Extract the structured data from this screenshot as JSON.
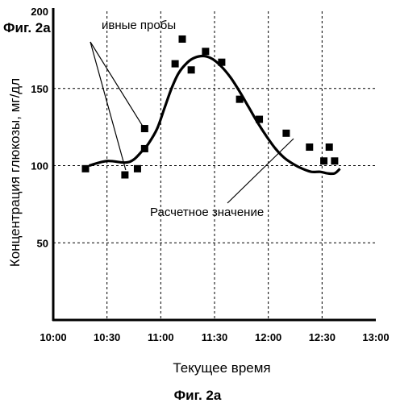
{
  "chart_data": {
    "type": "scatter",
    "xlabel": "Текущее время",
    "ylabel": "Концентрация глюкозы, мг/дл",
    "x_ticks": [
      "10:00",
      "10:30",
      "11:00",
      "11:30",
      "12:00",
      "12:30",
      "13:00"
    ],
    "y_ticks": [
      "50",
      "100",
      "150"
    ],
    "y_top_tick_partial": "200",
    "xlim": [
      "10:00",
      "13:00"
    ],
    "ylim": [
      0,
      200
    ],
    "grid": true,
    "series": [
      {
        "name": "ивные пробы",
        "kind": "points",
        "marker": "square",
        "x": [
          "10:18",
          "10:40",
          "10:47",
          "10:51",
          "10:51",
          "11:08",
          "11:12",
          "11:17",
          "11:25",
          "11:34",
          "11:44",
          "11:55",
          "12:10",
          "12:23",
          "12:31",
          "12:34",
          "12:37"
        ],
        "y": [
          98,
          94,
          98,
          111,
          124,
          166,
          182,
          162,
          174,
          167,
          143,
          130,
          121,
          112,
          103,
          112,
          103
        ]
      },
      {
        "name": "Расчетное значение",
        "kind": "line",
        "x": [
          "10:20",
          "10:30",
          "10:40",
          "10:45",
          "10:50",
          "10:53",
          "10:58",
          "11:02",
          "11:06",
          "11:10",
          "11:15",
          "11:19",
          "11:24",
          "11:29",
          "11:34",
          "11:39",
          "11:44",
          "11:49",
          "11:54",
          "11:59",
          "12:04",
          "12:09",
          "12:14",
          "12:19",
          "12:24",
          "12:29",
          "12:33",
          "12:37",
          "12:40"
        ],
        "y": [
          100,
          103,
          102,
          104,
          110,
          114,
          124,
          137,
          150,
          160,
          167,
          170,
          171,
          169,
          164,
          157,
          148,
          138,
          128,
          119,
          111,
          105,
          101,
          98,
          96,
          96,
          95,
          95,
          98
        ]
      }
    ],
    "annotations": [
      {
        "text": "ивные пробы",
        "target_series": 0
      },
      {
        "text": "Расчетное значение",
        "target_series": 1
      }
    ]
  },
  "figure_labels": {
    "top_left": "Фиг. 2а",
    "bottom": "Фиг. 2а"
  }
}
